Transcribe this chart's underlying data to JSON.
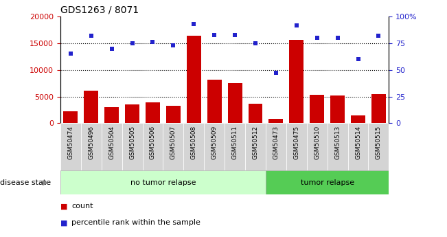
{
  "title": "GDS1263 / 8071",
  "samples": [
    "GSM50474",
    "GSM50496",
    "GSM50504",
    "GSM50505",
    "GSM50506",
    "GSM50507",
    "GSM50508",
    "GSM50509",
    "GSM50511",
    "GSM50512",
    "GSM50473",
    "GSM50475",
    "GSM50510",
    "GSM50513",
    "GSM50514",
    "GSM50515"
  ],
  "counts": [
    2200,
    6100,
    3000,
    3500,
    3900,
    3300,
    16400,
    8200,
    7500,
    3600,
    800,
    15700,
    5300,
    5200,
    1500,
    5500
  ],
  "percentiles": [
    65,
    82,
    70,
    75,
    76,
    73,
    93,
    83,
    83,
    75,
    47,
    92,
    80,
    80,
    60,
    82
  ],
  "no_tumor_count": 10,
  "tumor_count": 6,
  "bar_color": "#cc0000",
  "dot_color": "#2222cc",
  "no_tumor_color_light": "#ccffcc",
  "tumor_color": "#55cc55",
  "ylim_left": [
    0,
    20000
  ],
  "ylim_right": [
    0,
    100
  ],
  "yticks_left": [
    0,
    5000,
    10000,
    15000,
    20000
  ],
  "yticks_right": [
    0,
    25,
    50,
    75,
    100
  ],
  "grid_values": [
    5000,
    10000,
    15000
  ],
  "legend_count_label": "count",
  "legend_pct_label": "percentile rank within the sample",
  "disease_state_label": "disease state",
  "no_tumor_label": "no tumor relapse",
  "tumor_label": "tumor relapse",
  "bar_color_light": "#cc0000",
  "gray_col_bg": "#d4d4d4"
}
